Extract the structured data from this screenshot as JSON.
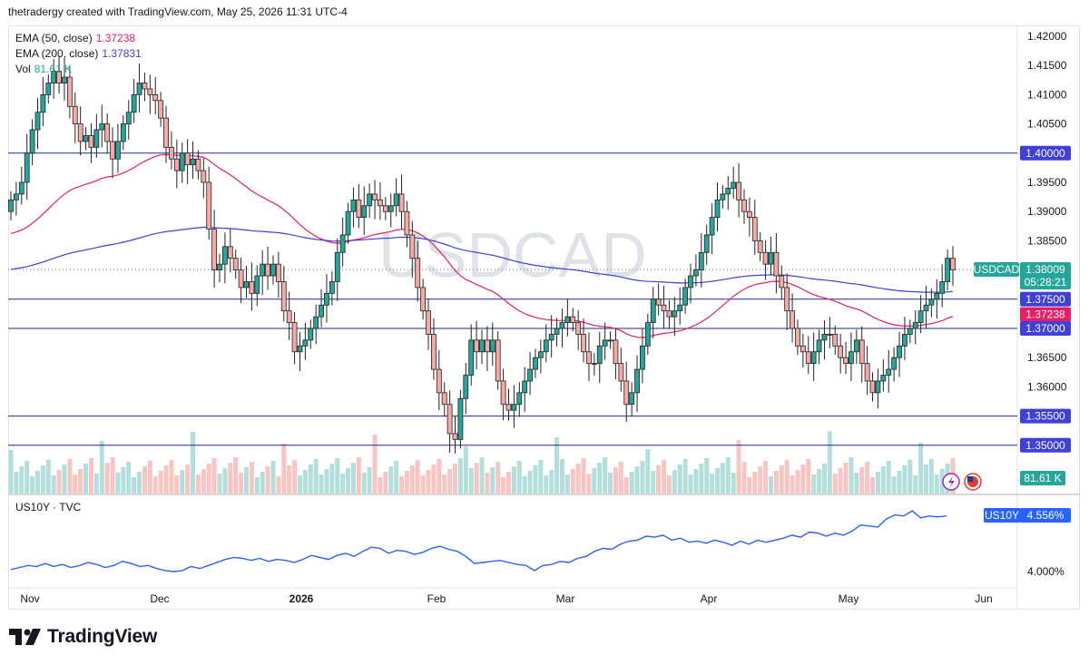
{
  "header": {
    "credit": "thetradergy created with TradingView.com, May 25, 2026 11:31 UTC-4"
  },
  "main_pane": {
    "watermark": "USDCAD",
    "legend": [
      {
        "label": "EMA (50, close)",
        "value": "1.37238",
        "color": "#e91e63"
      },
      {
        "label": "EMA (200, close)",
        "value": "1.37831",
        "color": "#3f3fd9"
      },
      {
        "label": "Vol",
        "value": "81.61 K",
        "color": "#26a69a"
      }
    ],
    "symbol_tag": "USDCAD",
    "price_tag": "1.38009",
    "countdown": "05:28:21",
    "tags": [
      {
        "id": "ema200",
        "text": "1.37831",
        "color": "#3f3fd9",
        "price": 1.37831
      },
      {
        "id": "l13750",
        "text": "1.37500",
        "color": "#3f3fd9",
        "price": 1.375
      },
      {
        "id": "ema50",
        "text": "1.37238",
        "color": "#e91e63",
        "price": 1.37238
      },
      {
        "id": "l13700",
        "text": "1.37000",
        "color": "#3f3fd9",
        "price": 1.37
      },
      {
        "id": "l13550",
        "text": "1.35500",
        "color": "#3f3fd9",
        "price": 1.355
      },
      {
        "id": "l14000",
        "text": "1.40000",
        "color": "#3f3fd9",
        "price": 1.4
      },
      {
        "id": "l13500",
        "text": "1.35000",
        "color": "#3f3fd9",
        "price": 1.35
      }
    ],
    "vol_tag": "81.61 K"
  },
  "sub_pane": {
    "legend_label": "US10Y · TVC",
    "symbol_tag": "US10Y",
    "value_tag": "4.556%",
    "axis_label": "4.000%"
  },
  "brand": {
    "name": "TradingView"
  },
  "chart_data": [
    {
      "type": "candlestick",
      "title": "USDCAD",
      "y_axis_ticks": [
        "1.42000",
        "1.41500",
        "1.41000",
        "1.40500",
        "1.40000",
        "1.39500",
        "1.39000",
        "1.38500",
        "1.38000",
        "1.37500",
        "1.37000",
        "1.36500",
        "1.36000",
        "1.35500",
        "1.35000"
      ],
      "x_axis_ticks": [
        "Nov",
        "Dec",
        "2026",
        "Feb",
        "Mar",
        "Apr",
        "May",
        "Jun"
      ],
      "ylim": [
        1.349,
        1.4215
      ],
      "horizontal_lines": [
        1.4,
        1.375,
        1.37,
        1.355,
        1.35
      ],
      "last_price": 1.38009,
      "close_series": [
        1.392,
        1.393,
        1.395,
        1.4,
        1.404,
        1.407,
        1.41,
        1.412,
        1.414,
        1.412,
        1.413,
        1.408,
        1.405,
        1.402,
        1.403,
        1.401,
        1.404,
        1.405,
        1.402,
        1.399,
        1.402,
        1.405,
        1.407,
        1.41,
        1.412,
        1.411,
        1.41,
        1.409,
        1.406,
        1.401,
        1.399,
        1.397,
        1.4,
        1.398,
        1.399,
        1.397,
        1.395,
        1.387,
        1.38,
        1.381,
        1.384,
        1.382,
        1.38,
        1.377,
        1.378,
        1.376,
        1.379,
        1.381,
        1.379,
        1.381,
        1.378,
        1.373,
        1.371,
        1.366,
        1.367,
        1.368,
        1.37,
        1.372,
        1.374,
        1.376,
        1.378,
        1.383,
        1.386,
        1.39,
        1.392,
        1.389,
        1.391,
        1.393,
        1.392,
        1.391,
        1.39,
        1.391,
        1.393,
        1.39,
        1.386,
        1.382,
        1.377,
        1.373,
        1.369,
        1.363,
        1.359,
        1.357,
        1.352,
        1.351,
        1.358,
        1.362,
        1.368,
        1.366,
        1.368,
        1.366,
        1.368,
        1.361,
        1.357,
        1.356,
        1.357,
        1.359,
        1.361,
        1.363,
        1.365,
        1.366,
        1.368,
        1.369,
        1.37,
        1.371,
        1.372,
        1.371,
        1.369,
        1.366,
        1.364,
        1.364,
        1.367,
        1.368,
        1.368,
        1.364,
        1.361,
        1.357,
        1.359,
        1.363,
        1.367,
        1.371,
        1.375,
        1.374,
        1.373,
        1.372,
        1.373,
        1.374,
        1.377,
        1.379,
        1.38,
        1.383,
        1.386,
        1.389,
        1.392,
        1.393,
        1.394,
        1.395,
        1.392,
        1.39,
        1.389,
        1.385,
        1.383,
        1.381,
        1.383,
        1.379,
        1.377,
        1.373,
        1.37,
        1.367,
        1.366,
        1.364,
        1.366,
        1.368,
        1.369,
        1.369,
        1.367,
        1.365,
        1.364,
        1.366,
        1.368,
        1.364,
        1.361,
        1.359,
        1.361,
        1.362,
        1.363,
        1.365,
        1.367,
        1.369,
        1.37,
        1.371,
        1.373,
        1.374,
        1.375,
        1.376,
        1.378,
        1.382,
        1.38
      ]
    },
    {
      "type": "line",
      "title": "US10Y · TVC",
      "y_axis_ticks": [
        "4.000%"
      ],
      "last_value": "4.556%",
      "values": [
        4.02,
        4.04,
        4.06,
        4.05,
        4.08,
        4.05,
        4.07,
        4.04,
        4.06,
        4.09,
        4.07,
        4.04,
        4.06,
        4.1,
        4.08,
        4.05,
        4.06,
        4.03,
        4.01,
        4.0,
        4.01,
        4.05,
        4.03,
        4.06,
        4.09,
        4.12,
        4.14,
        4.13,
        4.11,
        4.13,
        4.1,
        4.12,
        4.11,
        4.09,
        4.12,
        4.16,
        4.14,
        4.12,
        4.16,
        4.18,
        4.15,
        4.2,
        4.24,
        4.23,
        4.18,
        4.21,
        4.2,
        4.17,
        4.19,
        4.23,
        4.25,
        4.22,
        4.2,
        4.15,
        4.08,
        4.09,
        4.1,
        4.11,
        4.09,
        4.07,
        4.06,
        4.01,
        4.06,
        4.07,
        4.1,
        4.09,
        4.13,
        4.15,
        4.2,
        4.23,
        4.22,
        4.27,
        4.3,
        4.31,
        4.35,
        4.34,
        4.36,
        4.31,
        4.33,
        4.29,
        4.3,
        4.28,
        4.31,
        4.29,
        4.26,
        4.3,
        4.27,
        4.31,
        4.29,
        4.31,
        4.33,
        4.36,
        4.34,
        4.39,
        4.38,
        4.35,
        4.38,
        4.36,
        4.4,
        4.46,
        4.45,
        4.44,
        4.52,
        4.56,
        4.55,
        4.6,
        4.53,
        4.55,
        4.54,
        4.55
      ]
    },
    {
      "type": "bar",
      "title": "Vol",
      "last_value": "81.61 K"
    }
  ]
}
